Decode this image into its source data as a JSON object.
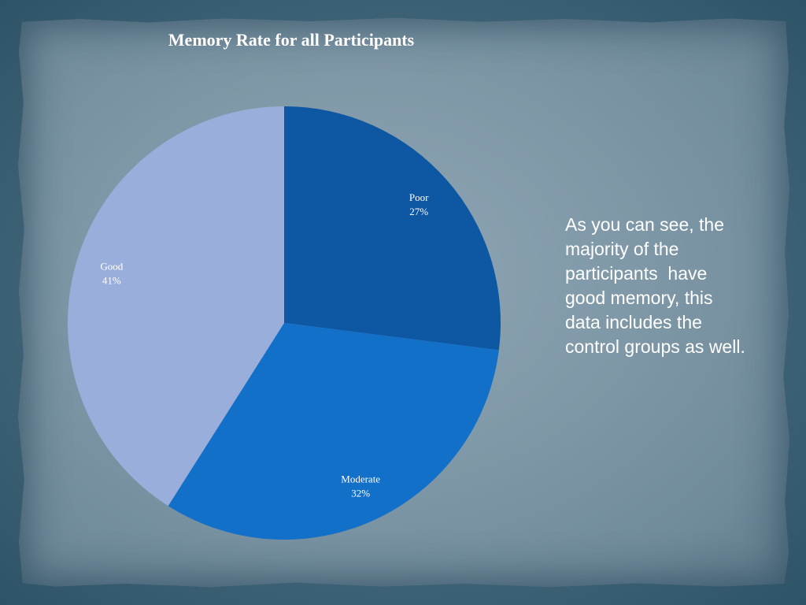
{
  "slide": {
    "body_text": "As you can see, the majority of the participants  have good memory, this data includes the control groups as well."
  },
  "chart_data": {
    "type": "pie",
    "title": "Memory Rate for all Participants",
    "slices": [
      {
        "label": "Poor",
        "value": 27,
        "display": "27%",
        "color": "#0d57a3"
      },
      {
        "label": "Moderate",
        "value": 32,
        "display": "32%",
        "color": "#1270c9"
      },
      {
        "label": "Good",
        "value": 41,
        "display": "41%",
        "color": "#9aaedb"
      }
    ],
    "start_angle_deg": 0,
    "direction": "clockwise",
    "legend": "none",
    "label_color": "#ffffff"
  }
}
